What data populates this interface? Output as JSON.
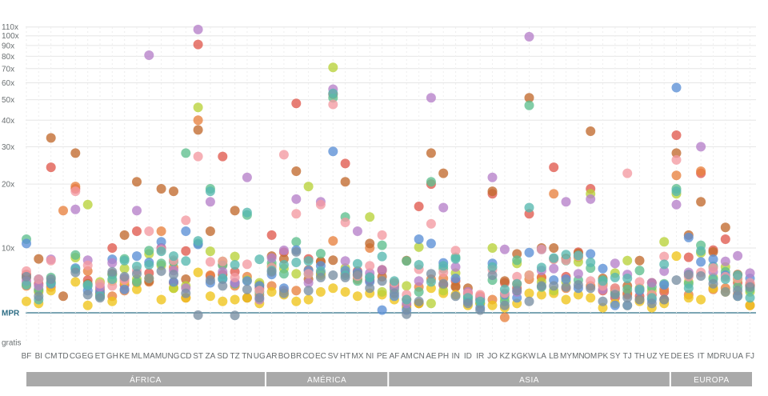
{
  "chart_data": {
    "type": "scatter",
    "title": "",
    "xlabel": "",
    "ylabel": "",
    "y_scale": "log",
    "y_ticks": [
      {
        "value": 0,
        "label": "gratis"
      },
      {
        "value": 1,
        "label": "MPR"
      },
      {
        "value": 10,
        "label": "10x"
      },
      {
        "value": 20,
        "label": "20x"
      },
      {
        "value": 30,
        "label": "30x"
      },
      {
        "value": 40,
        "label": "40x"
      },
      {
        "value": 50,
        "label": "50x"
      },
      {
        "value": 60,
        "label": "60x"
      },
      {
        "value": 70,
        "label": "70x"
      },
      {
        "value": 80,
        "label": "80x"
      },
      {
        "value": 90,
        "label": "90x"
      },
      {
        "value": 100,
        "label": "100x"
      },
      {
        "value": 110,
        "label": "110x"
      }
    ],
    "grid": true,
    "mpr_value": 1,
    "countries": [
      "BF",
      "BI",
      "CM",
      "TD",
      "CG",
      "EG",
      "ET",
      "GH",
      "KE",
      "ML",
      "MA",
      "MU",
      "NG",
      "CD",
      "ST",
      "ZA",
      "SD",
      "TZ",
      "TN",
      "UG",
      "AR",
      "BO",
      "BR",
      "CO",
      "EC",
      "SV",
      "HT",
      "MX",
      "NI",
      "PE",
      "AF",
      "AM",
      "CN",
      "AE",
      "PH",
      "IN",
      "ID",
      "IR",
      "JO",
      "KZ",
      "KG",
      "KW",
      "LA",
      "LB",
      "MY",
      "MN",
      "OM",
      "PK",
      "SY",
      "TJ",
      "TH",
      "UZ",
      "YE",
      "DE",
      "ES",
      "IT",
      "MD",
      "RU",
      "UA",
      "FJ"
    ],
    "regions": [
      {
        "name": "ÁFRICA",
        "start": 0,
        "end": 19
      },
      {
        "name": "AMÉRICA",
        "start": 20,
        "end": 29
      },
      {
        "name": "ASIA",
        "start": 30,
        "end": 52
      },
      {
        "name": "EUROPA",
        "start": 53,
        "end": 59
      }
    ],
    "series": [
      {
        "color": "#e05a4e",
        "values": [
          3.9,
          2.8,
          24,
          null,
          19,
          3.2,
          2.0,
          10,
          2.7,
          12,
          4.1,
          10,
          2.9,
          9,
          91,
          3.7,
          27,
          4.3,
          null,
          2.4,
          11.5,
          8.6,
          48,
          6.8,
          4.1,
          53,
          25,
          4.4,
          3.2,
          4.5,
          2.6,
          1.6,
          15.7,
          20,
          2.7,
          3.1,
          2.0,
          1.4,
          18,
          2.9,
          2.4,
          14.5,
          3.5,
          24,
          3.6,
          8.6,
          19,
          2.2,
          1.7,
          2.0,
          1.8,
          1.9,
          2.1,
          34,
          7.2,
          22.5,
          9.3,
          11,
          2.9,
          2.6
        ]
      },
      {
        "color": "#e8823f",
        "values": [
          2.6,
          2.2,
          2.5,
          15,
          19.5,
          4.4,
          2.3,
          1.8,
          2.2,
          2.9,
          3.0,
          12,
          5.0,
          1.7,
          40,
          3.8,
          5.6,
          2.6,
          3.6,
          1.9,
          2.6,
          2.2,
          2.2,
          4.6,
          6.1,
          10.8,
          4.1,
          3.3,
          10,
          4.6,
          2.7,
          1.3,
          2.5,
          3.3,
          3.4,
          2.6,
          1.6,
          1.8,
          1.6,
          0.85,
          2.8,
          3.3,
          3.5,
          18,
          2.4,
          7.2,
          2.6,
          2.8,
          2.2,
          1.9,
          1.6,
          1.9,
          2.3,
          22,
          1.9,
          23,
          2.3,
          2.4,
          1.9,
          1.3
        ]
      },
      {
        "color": "#c26a2e",
        "values": [
          3.5,
          6.8,
          33,
          1.8,
          28,
          2.8,
          1.9,
          4.0,
          11.5,
          20.5,
          3.1,
          19,
          18.5,
          3.3,
          36,
          12,
          3.9,
          15,
          1.7,
          2.7,
          7.5,
          6.8,
          23,
          3.3,
          6.2,
          6.5,
          20.5,
          3.9,
          10.5,
          3.6,
          2.9,
          6.4,
          1.4,
          28,
          22.5,
          2.5,
          2.4,
          1.6,
          18.5,
          3.1,
          8.1,
          51,
          10,
          10,
          6.9,
          8.3,
          35.5,
          3.4,
          2.4,
          2.6,
          6.4,
          2.9,
          1.6,
          28,
          11.5,
          16.5,
          8.7,
          12.5,
          3.9,
          2.7
        ]
      },
      {
        "color": "#f0c419",
        "values": [
          1.5,
          1.4,
          2.2,
          null,
          3.0,
          1.3,
          1.9,
          1.5,
          3.0,
          2.3,
          3.4,
          1.6,
          2.4,
          1.7,
          4.2,
          1.8,
          1.5,
          1.6,
          1.7,
          1.4,
          2.1,
          1.9,
          1.5,
          1.6,
          2.1,
          2.4,
          2.1,
          1.8,
          2.0,
          1.9,
          1.6,
          1.2,
          1.4,
          2.4,
          2.0,
          1.9,
          1.3,
          1.4,
          1.3,
          1.2,
          1.4,
          2.0,
          1.9,
          2.0,
          1.6,
          1.9,
          1.7,
          1.2,
          1.4,
          1.3,
          1.5,
          1.2,
          1.4,
          7.5,
          1.7,
          1.6,
          2.4,
          2.1,
          1.8,
          1.3
        ]
      },
      {
        "color": "#b9d23a",
        "values": [
          2.8,
          2.1,
          3.0,
          null,
          7.1,
          16,
          3.0,
          3.1,
          4.8,
          3.3,
          8.1,
          5.4,
          2.4,
          2.6,
          46,
          8.9,
          6.2,
          7.4,
          3.2,
          2.9,
          5.3,
          4.8,
          4.0,
          19.5,
          3.8,
          71,
          4.9,
          3.8,
          14,
          2.1,
          2.5,
          2.6,
          10.1,
          1.4,
          2.2,
          4.1,
          1.7,
          1.4,
          10,
          1.7,
          5.8,
          3.8,
          3.0,
          2.2,
          3.0,
          6.1,
          18,
          2.7,
          4.1,
          6.4,
          2.4,
          2.2,
          10.7,
          18,
          3.0,
          8.4,
          3.5,
          5.1,
          3.3,
          2.1
        ]
      },
      {
        "color": "#5fbf8e",
        "values": [
          11,
          2.3,
          3.5,
          null,
          7.8,
          2.6,
          1.8,
          3.9,
          6.8,
          3.0,
          9.1,
          5.8,
          6.1,
          28,
          10.5,
          19,
          5.4,
          2.8,
          14.3,
          2.1,
          5.9,
          4.0,
          10.7,
          4.0,
          8.2,
          51,
          14,
          3.1,
          3.6,
          10.3,
          2.3,
          6.3,
          2.1,
          20.5,
          4.8,
          7.2,
          1.8,
          1.6,
          3.2,
          1.5,
          6.5,
          47,
          2.5,
          6.8,
          6.4,
          3.2,
          4.9,
          3.2,
          2.0,
          2.3,
          4.5,
          2.5,
          2.8,
          19,
          2.8,
          10.3,
          5.2,
          4.3,
          2.5,
          2.3
        ]
      },
      {
        "color": "#5b8fd6",
        "values": [
          10.5,
          3.3,
          2.8,
          null,
          4.9,
          2.2,
          2.1,
          6.7,
          2.3,
          7.5,
          6.0,
          10.7,
          3.0,
          12,
          10.4,
          2.9,
          3.3,
          2.9,
          3.1,
          2.6,
          3.9,
          2.4,
          9.3,
          4.5,
          5.3,
          28.5,
          4.5,
          4.2,
          3.0,
          1.1,
          1.8,
          1.1,
          11,
          10.5,
          5.9,
          3.4,
          1.5,
          1.2,
          5.8,
          1.9,
          1.7,
          8.5,
          9.5,
          3.2,
          3.3,
          2.4,
          8.1,
          4.8,
          1.3,
          1.3,
          2.2,
          1.6,
          2.7,
          57,
          11.2,
          6.1,
          6.7,
          3.8,
          1.8,
          3.4
        ]
      },
      {
        "color": "#b680c9",
        "values": [
          3.1,
          2.6,
          6.7,
          null,
          15.2,
          6.5,
          2.5,
          5.9,
          3.4,
          15,
          81,
          9.8,
          4.5,
          2.4,
          107,
          16.5,
          4.3,
          2.9,
          21.5,
          1.6,
          7.0,
          9.2,
          17,
          2.9,
          16.5,
          56,
          6.3,
          12,
          4.1,
          4.6,
          2.5,
          1.4,
          3.1,
          51,
          15.5,
          5.1,
          2.1,
          1.7,
          21.5,
          9.5,
          2.1,
          99,
          4.5,
          4.8,
          16.5,
          4.0,
          17,
          2.3,
          5.8,
          3.9,
          2.3,
          2.9,
          4.4,
          16,
          4.2,
          30,
          4.3,
          6.2,
          7.6,
          4.1
        ]
      },
      {
        "color": "#f49aa2",
        "values": [
          4.4,
          3.3,
          6.4,
          null,
          18.5,
          5.4,
          2.8,
          2.6,
          3.2,
          4.5,
          12,
          9.3,
          6.5,
          13.5,
          27,
          6.1,
          6.2,
          3.5,
          5.6,
          2.2,
          5.0,
          27.5,
          14.5,
          4.0,
          16,
          47.5,
          13.2,
          3.7,
          5.3,
          11.5,
          2.9,
          1.9,
          4.7,
          13,
          4.2,
          9.1,
          2.0,
          1.9,
          4.6,
          2.0,
          3.6,
          3.8,
          9.5,
          6.7,
          6.5,
          7.5,
          3.1,
          2.6,
          2.4,
          22.5,
          3.0,
          1.9,
          7.4,
          26,
          3.6,
          4.2,
          4.9,
          3.6,
          3.4,
          2.9
        ]
      },
      {
        "color": "#57b8b0",
        "values": [
          2.7,
          1.6,
          2.9,
          null,
          4.7,
          2.7,
          1.8,
          3.3,
          6.4,
          5.2,
          5.5,
          8.9,
          7.5,
          6.3,
          10.8,
          18.5,
          3.4,
          5.5,
          14.7,
          6.7,
          4.5,
          5.5,
          6.0,
          6.3,
          4.4,
          53.5,
          3.8,
          5.7,
          3.5,
          7.4,
          3.1,
          1.6,
          5.5,
          3.0,
          5.3,
          6.8,
          1.7,
          1.5,
          5.1,
          2.3,
          2.8,
          15.5,
          5.0,
          7.0,
          7.9,
          7.7,
          6.0,
          3.1,
          3.5,
          3.4,
          2.3,
          1.7,
          5.6,
          18.5,
          2.4,
          9.0,
          3.3,
          3.3,
          3.8,
          1.7
        ]
      },
      {
        "color": "#7a8fa3",
        "values": [
          3.6,
          1.8,
          3.3,
          null,
          4.2,
          1.9,
          1.7,
          4.3,
          3.6,
          4.0,
          3.4,
          4.4,
          3.9,
          2.0,
          0.92,
          3.2,
          2.6,
          0.91,
          2.3,
          1.7,
          4.3,
          2.0,
          8.7,
          2.2,
          3.5,
          3.8,
          3.5,
          3.9,
          2.4,
          3.1,
          2.0,
          0.95,
          1.5,
          4.0,
          2.8,
          1.8,
          1.4,
          1.1,
          3.8,
          1.3,
          2.2,
          1.5,
          2.6,
          2.6,
          2.5,
          2.7,
          2.4,
          1.5,
          1.9,
          1.7,
          1.6,
          1.4,
          1.6,
          3.2,
          3.9,
          3.7,
          2.8,
          2.1,
          2.2,
          2.5
        ]
      }
    ]
  }
}
